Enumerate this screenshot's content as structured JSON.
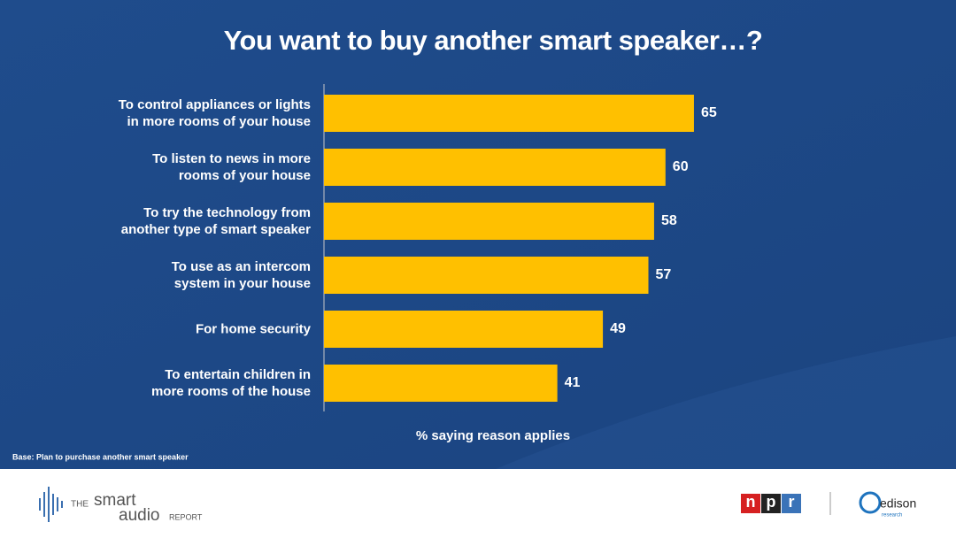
{
  "chart_data": {
    "type": "hbar",
    "title": "You want to buy another smart speaker…?",
    "categories": [
      "To control appliances or lights\nin more rooms of your house",
      "To listen to news in more\nrooms of your house",
      "To try the technology from\nanother type of smart speaker",
      "To use as an intercom\nsystem in your house",
      "For home security",
      "To entertain children in\nmore rooms of the house"
    ],
    "values": [
      65,
      60,
      58,
      57,
      49,
      41
    ],
    "color": "#ffc000",
    "xlim": [
      0,
      100
    ],
    "xlabel": "% saying reason applies",
    "note": "Base: Plan to purchase another smart speaker"
  },
  "footer": {
    "brand": {
      "the": "THE",
      "smart": "smart",
      "audio": "audio",
      "report": "REPORT"
    },
    "npr": [
      "n",
      "p",
      "r"
    ],
    "edison": {
      "name": "edison",
      "tag": "research"
    }
  }
}
